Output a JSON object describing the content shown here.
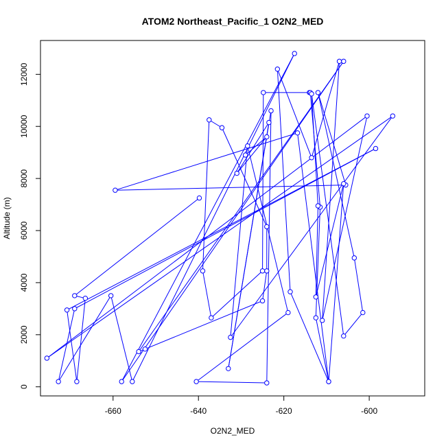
{
  "chart_data": {
    "type": "line",
    "title": "ATOM2 Northeast_Pacific_1 O2N2_MED",
    "xlabel": "O2N2_MED",
    "ylabel": "Altitude (m)",
    "xlim": [
      -677,
      -587
    ],
    "ylim": [
      -350,
      13300
    ],
    "x_ticks": [
      -660,
      -640,
      -620,
      -600
    ],
    "y_ticks": [
      0,
      2000,
      4000,
      6000,
      8000,
      10000,
      12000
    ],
    "grid": false,
    "legend": "none",
    "series": [
      {
        "color": "#0000ff",
        "marker": "open-circle",
        "points": [
          [
            -639.8,
            7250
          ],
          [
            -669.0,
            3500
          ],
          [
            -666.5,
            3400
          ],
          [
            -668.5,
            200
          ],
          [
            -670.8,
            2950
          ],
          [
            -598.5,
            9150
          ],
          [
            -669.0,
            3000
          ],
          [
            -672.8,
            200
          ],
          [
            -660.5,
            3500
          ],
          [
            -655.5,
            200
          ],
          [
            -617.5,
            12800
          ],
          [
            -658.0,
            200
          ],
          [
            -606.0,
            12500
          ],
          [
            -654.0,
            1350
          ],
          [
            -652.5,
            1450
          ],
          [
            -625.0,
            3300
          ],
          [
            -624.0,
            4450
          ],
          [
            -624.0,
            6150
          ],
          [
            -634.5,
            9950
          ],
          [
            -637.5,
            10250
          ],
          [
            -639.0,
            4450
          ],
          [
            -637.0,
            2650
          ],
          [
            -625.0,
            4450
          ],
          [
            -624.8,
            11300
          ],
          [
            -614.0,
            11300
          ],
          [
            -613.8,
            11300
          ],
          [
            -611.5,
            6900
          ],
          [
            -612.5,
            2650
          ],
          [
            -609.5,
            200
          ],
          [
            -616.8,
            9750
          ],
          [
            -659.5,
            7550
          ],
          [
            -605.5,
            7750
          ],
          [
            -612.0,
            11300
          ],
          [
            -603.5,
            4950
          ],
          [
            -601.5,
            2850
          ],
          [
            -606.0,
            1950
          ],
          [
            -613.5,
            11250
          ],
          [
            -612.0,
            6950
          ],
          [
            -612.5,
            3450
          ],
          [
            -606.0,
            7800
          ],
          [
            -609.5,
            200
          ],
          [
            -618.5,
            3650
          ],
          [
            -621.5,
            12200
          ],
          [
            -613.5,
            8800
          ],
          [
            -607.0,
            12500
          ],
          [
            -611.0,
            2550
          ],
          [
            -600.5,
            10400
          ],
          [
            -675.5,
            1100
          ],
          [
            -594.5,
            10400
          ],
          [
            -632.5,
            1900
          ],
          [
            -628.5,
            9250
          ],
          [
            -619.0,
            2850
          ],
          [
            -640.5,
            200
          ],
          [
            -624.0,
            150
          ],
          [
            -623.0,
            10600
          ],
          [
            -633.0,
            700
          ],
          [
            -623.5,
            10150
          ],
          [
            -631.0,
            8200
          ],
          [
            -624.0,
            9600
          ],
          [
            -629.0,
            8900
          ]
        ]
      }
    ]
  }
}
